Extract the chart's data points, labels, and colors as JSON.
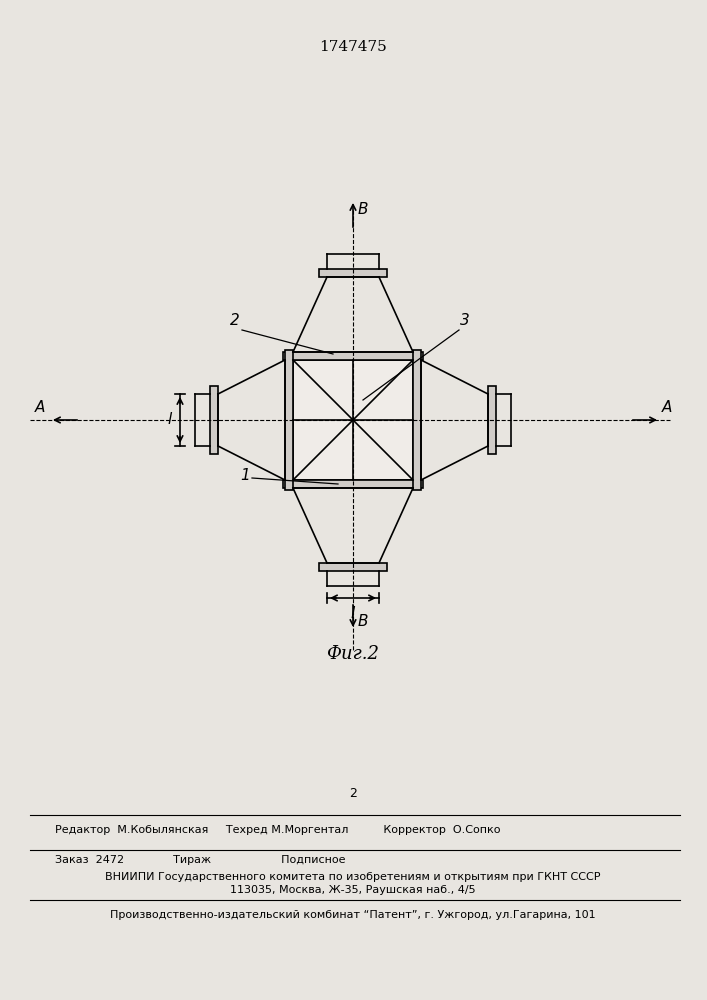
{
  "patent_number": "1747475",
  "figure_caption": "Фиг.2",
  "bg_color": "#e8e5e0",
  "line_color": "#000000",
  "label_1": "1",
  "label_2": "2",
  "label_3": "3",
  "label_A": "A",
  "label_B": "B",
  "label_L": "l",
  "editor_line": "Редактор  М.Кобылянская     Техред М.Моргентал          Корректор  О.Сопко",
  "order_line": "Заказ  2472              Тираж                    Подписное",
  "vniip_line1": "ВНИИПИ Государственного комитета по изобретениям и открытиям при ГКНТ СССР",
  "vniip_line2": "113035, Москва, Ж-35, Раушская наб., 4/5",
  "patent_line": "Производственно-издательский комбинат “Патент”, г. Ужгород, ул.Гагарина, 101",
  "page_num": "2"
}
